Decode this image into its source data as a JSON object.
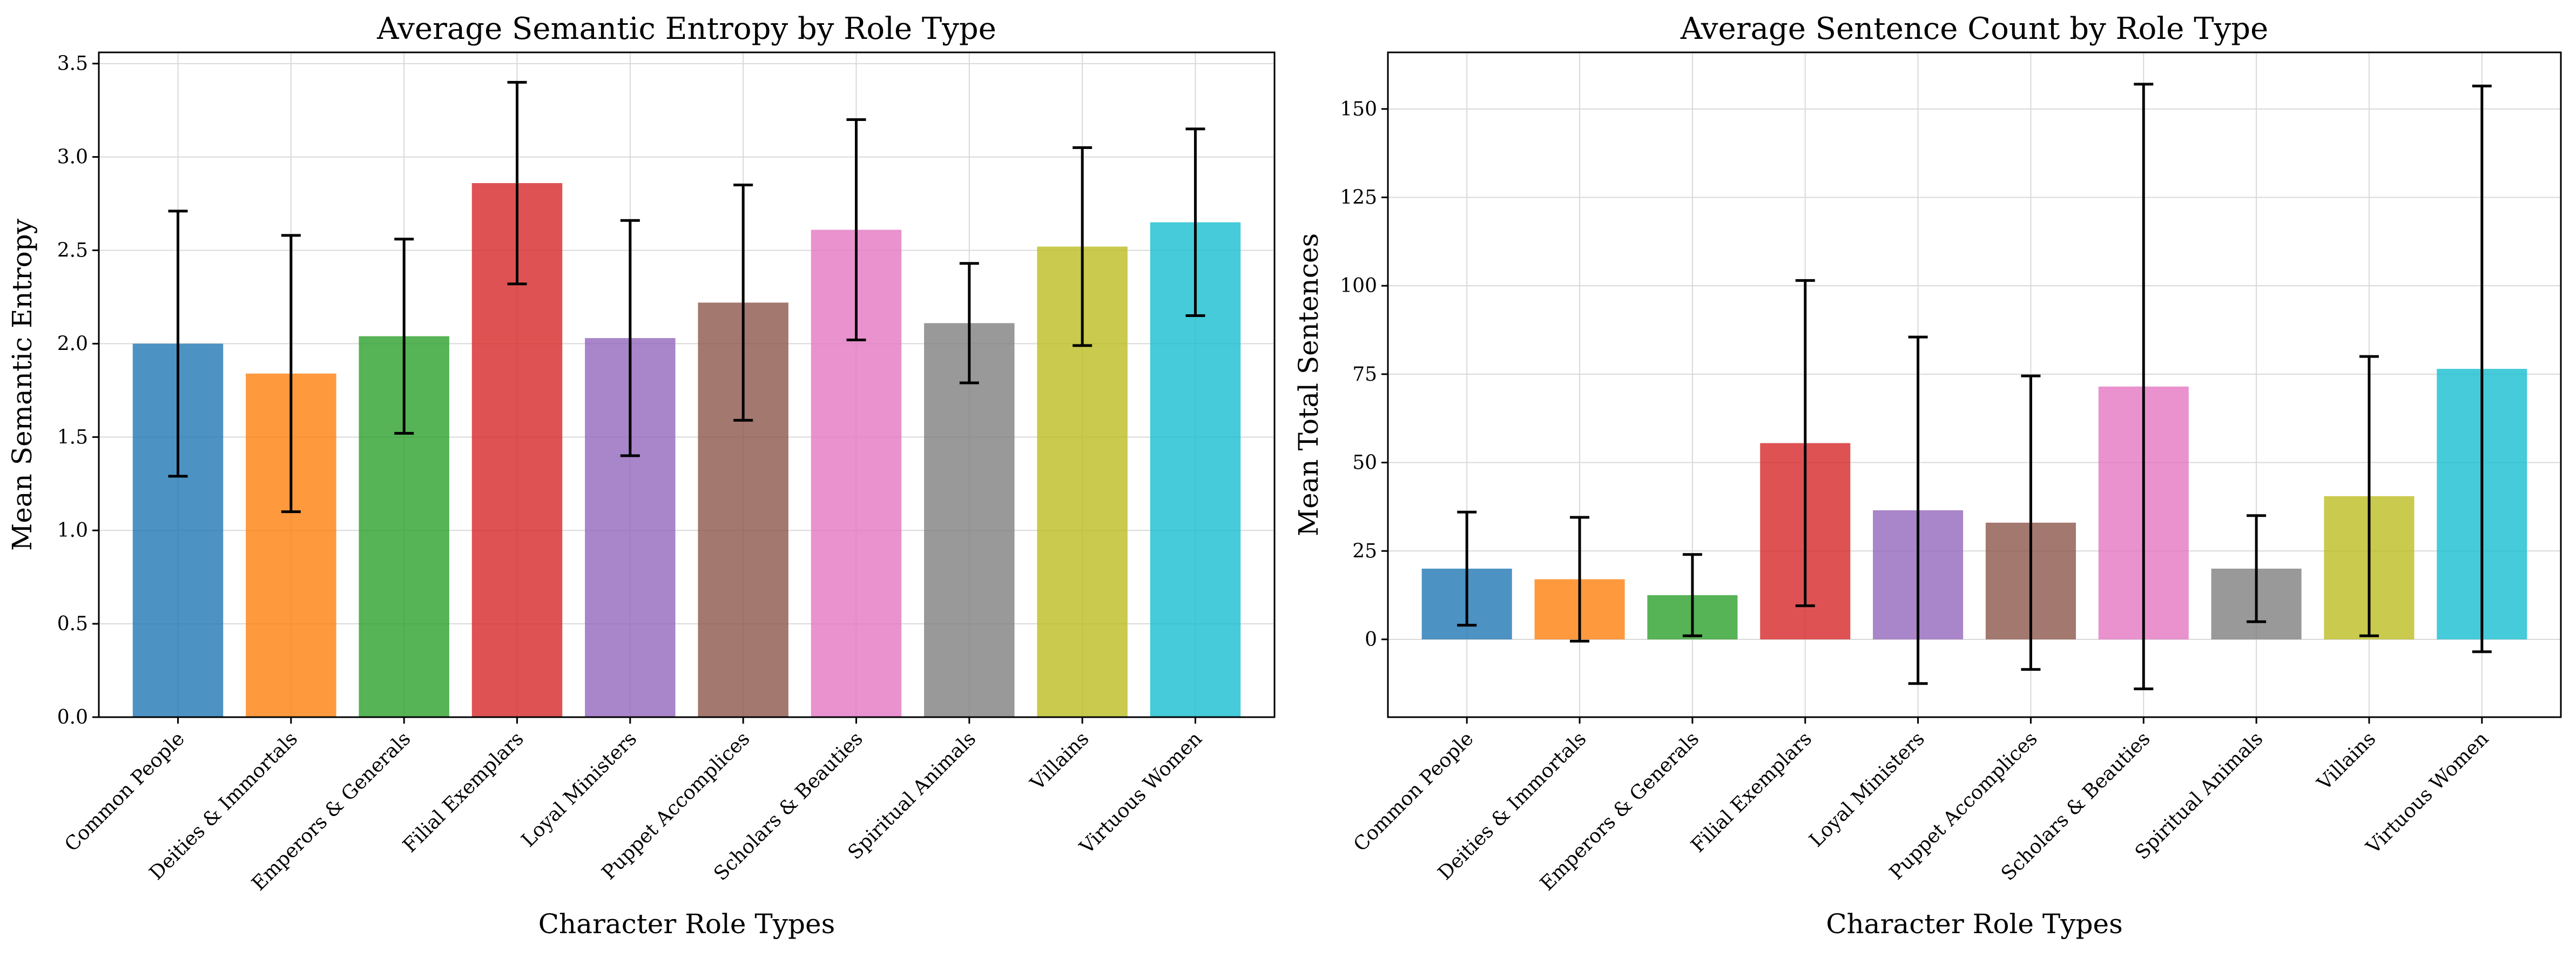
{
  "chart_data": [
    {
      "type": "bar",
      "title": "Average Semantic Entropy by Role Type",
      "xlabel": "Character Role Types",
      "ylabel": "Mean Semantic Entropy",
      "ylim": [
        0,
        3.56
      ],
      "yticks": [
        0.0,
        0.5,
        1.0,
        1.5,
        2.0,
        2.5,
        3.0,
        3.5
      ],
      "ytick_labels": [
        "0.0",
        "0.5",
        "1.0",
        "1.5",
        "2.0",
        "2.5",
        "3.0",
        "3.5"
      ],
      "grid": true,
      "categories": [
        "Common People",
        "Deities & Immortals",
        "Emperors & Generals",
        "Filial Exemplars",
        "Loyal Ministers",
        "Puppet Accomplices",
        "Scholars & Beauties",
        "Spiritual Animals",
        "Villains",
        "Virtuous Women"
      ],
      "values": [
        2.0,
        1.84,
        2.04,
        2.86,
        2.03,
        2.22,
        2.61,
        2.11,
        2.52,
        2.65
      ],
      "errors": [
        0.71,
        0.74,
        0.52,
        0.54,
        0.63,
        0.63,
        0.59,
        0.32,
        0.53,
        0.5
      ],
      "colors": [
        "#1f77b4",
        "#ff7f0e",
        "#2ca02c",
        "#d62728",
        "#9467bd",
        "#8c564b",
        "#e377c2",
        "#7f7f7f",
        "#bcbd22",
        "#17becf"
      ]
    },
    {
      "type": "bar",
      "title": "Average Sentence Count by Role Type",
      "xlabel": "Character Role Types",
      "ylabel": "Mean Total Sentences",
      "ylim": [
        -22,
        166
      ],
      "yticks": [
        0,
        25,
        50,
        75,
        100,
        125,
        150
      ],
      "ytick_labels": [
        "0",
        "25",
        "50",
        "75",
        "100",
        "125",
        "150"
      ],
      "grid": true,
      "categories": [
        "Common People",
        "Deities & Immortals",
        "Emperors & Generals",
        "Filial Exemplars",
        "Loyal Ministers",
        "Puppet Accomplices",
        "Scholars & Beauties",
        "Spiritual Animals",
        "Villains",
        "Virtuous Women"
      ],
      "values": [
        20,
        17,
        12.5,
        55.5,
        36.5,
        33,
        71.5,
        20,
        40.5,
        76.5
      ],
      "errors": [
        16,
        17.5,
        11.5,
        46,
        49,
        41.5,
        85.5,
        15,
        39.5,
        80
      ],
      "colors": [
        "#1f77b4",
        "#ff7f0e",
        "#2ca02c",
        "#d62728",
        "#9467bd",
        "#8c564b",
        "#e377c2",
        "#7f7f7f",
        "#bcbd22",
        "#17becf"
      ]
    }
  ]
}
